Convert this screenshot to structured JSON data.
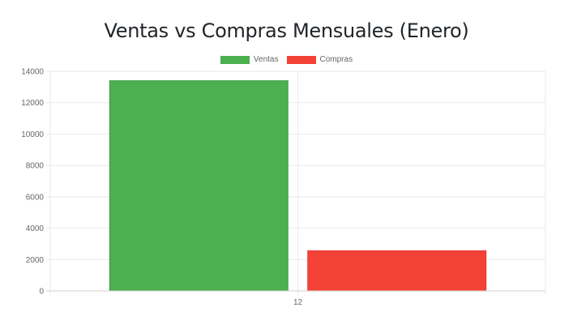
{
  "chart_data": {
    "type": "bar",
    "title": "Ventas vs Compras Mensuales (Enero)",
    "categories": [
      "12"
    ],
    "series": [
      {
        "name": "Ventas",
        "values": [
          13400
        ],
        "color": "#4caf50",
        "border": "#43a047"
      },
      {
        "name": "Compras",
        "values": [
          2560
        ],
        "color": "#f44336",
        "border": "#e53935"
      }
    ],
    "xlabel": "",
    "ylabel": "",
    "ylim": [
      0,
      14000
    ],
    "yticks": [
      "0",
      "2000",
      "4000",
      "6000",
      "8000",
      "10000",
      "12000",
      "14000"
    ],
    "grid": true,
    "legend_position": "top"
  }
}
